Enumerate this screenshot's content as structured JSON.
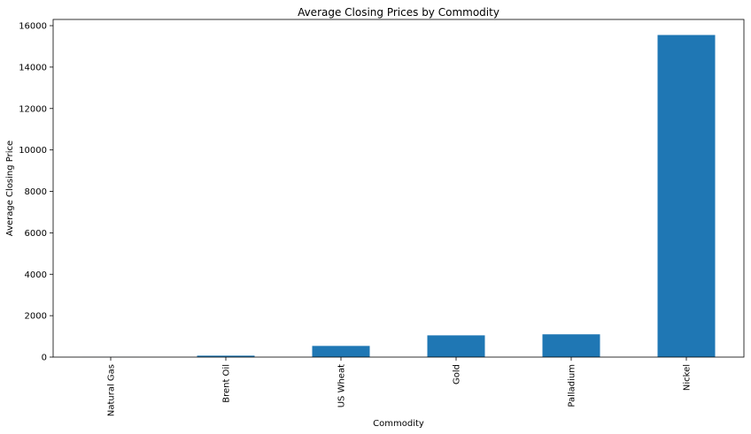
{
  "chart_data": {
    "type": "bar",
    "title": "Average Closing Prices by Commodity",
    "xlabel": "Commodity",
    "ylabel": "Average Closing Price",
    "categories": [
      "Natural Gas",
      "Brent Oil",
      "US Wheat",
      "Gold",
      "Palladium",
      "Nickel"
    ],
    "values": [
      3,
      70,
      540,
      1050,
      1100,
      15550
    ],
    "ylim": [
      0,
      16300
    ],
    "yticks": [
      0,
      2000,
      4000,
      6000,
      8000,
      10000,
      12000,
      14000,
      16000
    ],
    "ytick_labels": [
      "0",
      "2000",
      "4000",
      "6000",
      "8000",
      "10000",
      "12000",
      "14000",
      "16000"
    ],
    "grid": false,
    "legend": "none",
    "bar_color": "#1f77b4"
  }
}
